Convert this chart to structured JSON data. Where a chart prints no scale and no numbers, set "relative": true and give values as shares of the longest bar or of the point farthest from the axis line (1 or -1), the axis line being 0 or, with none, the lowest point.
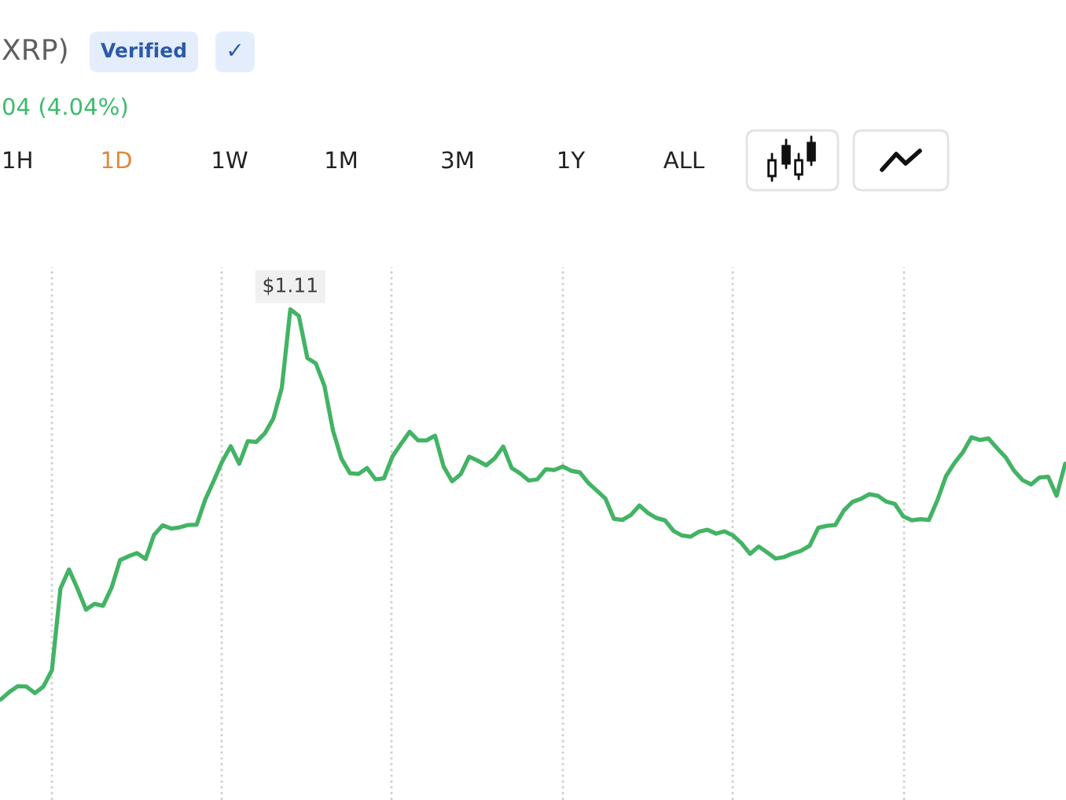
{
  "chart_data": {
    "type": "line",
    "title": "XRP)",
    "annotations": [
      "Verified",
      "✓",
      "04 (4.04%)",
      "1H",
      "1D",
      "1W",
      "1M",
      "3M",
      "1Y",
      "ALL",
      "$1.11"
    ],
    "relative": true,
    "categories": [
      null,
      null,
      null,
      null,
      null,
      null,
      null,
      null,
      null,
      null,
      null,
      null,
      null,
      null,
      null,
      null,
      null,
      null,
      null,
      null,
      null,
      null,
      null,
      null,
      null,
      null,
      null,
      null,
      null,
      null,
      null,
      null,
      null,
      null,
      null,
      null,
      null,
      null,
      null,
      null,
      null,
      null,
      null,
      null,
      null,
      null,
      null,
      null,
      null,
      null,
      null,
      null,
      null,
      null,
      null,
      null,
      null,
      null,
      null,
      null,
      null,
      null,
      null,
      null,
      null,
      null,
      null,
      null,
      null,
      null,
      null,
      null,
      null,
      null,
      null,
      null,
      null,
      null,
      null,
      null,
      null,
      null,
      null,
      null,
      null,
      null,
      null,
      null,
      null,
      null,
      null,
      null,
      null,
      null,
      null,
      null,
      null,
      null,
      null,
      null,
      null,
      null,
      null,
      null,
      null,
      null,
      null,
      null,
      null,
      null,
      null,
      null,
      null,
      null,
      null,
      null,
      null,
      null,
      null,
      null,
      null,
      null,
      null,
      null,
      null,
      null
    ],
    "series": [
      {
        "color": "#43b365",
        "values": [
          0,
          0.019,
          0.034,
          0.033,
          0.016,
          0.033,
          0.075,
          0.284,
          0.333,
          0.284,
          0.23,
          0.245,
          0.24,
          0.286,
          0.357,
          0.367,
          0.375,
          0.36,
          0.422,
          0.446,
          0.438,
          0.441,
          0.447,
          0.448,
          0.512,
          0.56,
          0.61,
          0.649,
          0.604,
          0.662,
          0.66,
          0.682,
          0.72,
          0.799,
          1,
          0.983,
          0.875,
          0.861,
          0.804,
          0.69,
          0.617,
          0.58,
          0.578,
          0.593,
          0.564,
          0.567,
          0.623,
          0.655,
          0.686,
          0.664,
          0.664,
          0.676,
          0.597,
          0.559,
          0.577,
          0.622,
          0.612,
          0.6,
          0.618,
          0.648,
          0.593,
          0.579,
          0.561,
          0.564,
          0.59,
          0.588,
          0.597,
          0.586,
          0.582,
          0.555,
          0.535,
          0.515,
          0.463,
          0.46,
          0.473,
          0.497,
          0.478,
          0.465,
          0.459,
          0.432,
          0.42,
          0.417,
          0.43,
          0.435,
          0.425,
          0.431,
          0.42,
          0.4,
          0.373,
          0.392,
          0.377,
          0.361,
          0.365,
          0.374,
          0.381,
          0.394,
          0.44,
          0.445,
          0.447,
          0.484,
          0.506,
          0.514,
          0.526,
          0.522,
          0.507,
          0.501,
          0.469,
          0.459,
          0.462,
          0.46,
          0.511,
          0.572,
          0.606,
          0.634,
          0.672,
          0.665,
          0.669,
          0.644,
          0.621,
          0.586,
          0.562,
          0.551,
          0.569,
          0.571,
          0.522,
          0.604
        ]
      }
    ]
  }
}
